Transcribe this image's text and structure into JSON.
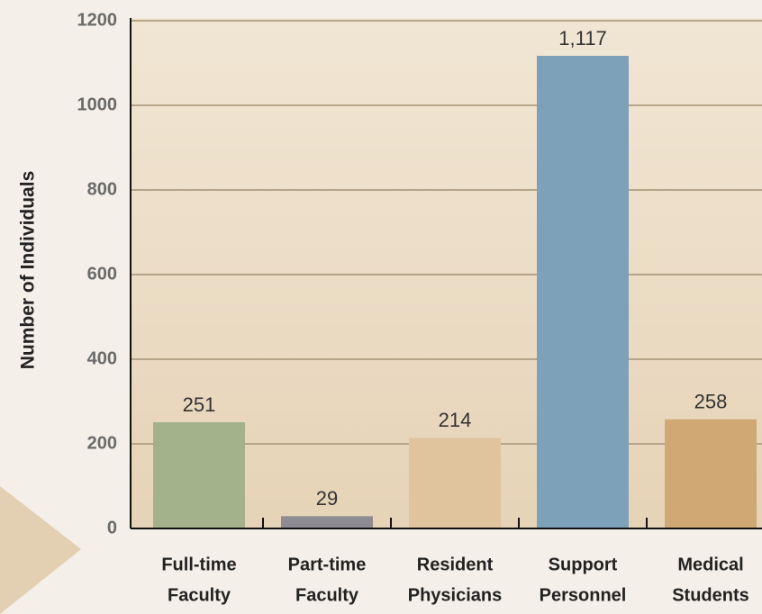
{
  "chart_data": {
    "type": "bar",
    "y_axis_label": "Number of Individuals",
    "categories": [
      [
        "Full-time",
        "Faculty"
      ],
      [
        "Part-time",
        "Faculty"
      ],
      [
        "Resident",
        "Physicians"
      ],
      [
        "Support",
        "Personnel"
      ],
      [
        "Medical",
        "Students"
      ]
    ],
    "values": [
      251,
      29,
      214,
      1117,
      258
    ],
    "value_labels": [
      "251",
      "29",
      "214",
      "1,117",
      "258"
    ],
    "colors": [
      "#a3b28b",
      "#8e8c92",
      "#dfc49d",
      "#7ea1ba",
      "#cfa874"
    ],
    "ylim": [
      0,
      1200
    ],
    "yticks": [
      0,
      200,
      400,
      600,
      800,
      1000,
      1200
    ],
    "grid": true
  }
}
